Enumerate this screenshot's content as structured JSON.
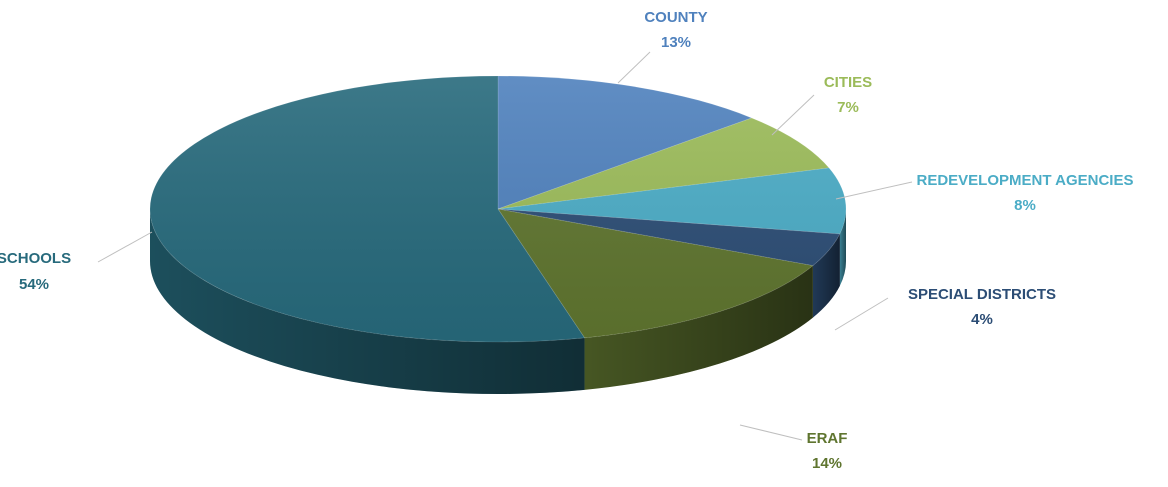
{
  "chart_data": {
    "type": "pie",
    "title": "",
    "three_d": true,
    "start_angle_degrees_clockwise_from_top": 0,
    "slices": [
      {
        "label": "COUNTY",
        "pct_label": "13%",
        "value": 13,
        "color": "#4F81BD",
        "label_color": "#4F81BD"
      },
      {
        "label": "CITIES",
        "pct_label": "7%",
        "value": 7,
        "color": "#9BBB59",
        "label_color": "#9BBB59"
      },
      {
        "label": "REDEVELOPMENT AGENCIES",
        "pct_label": "8%",
        "value": 8,
        "color": "#4BACC6",
        "label_color": "#4BACC6"
      },
      {
        "label": "SPECIAL DISTRICTS",
        "pct_label": "4%",
        "value": 4,
        "color": "#2C4D75",
        "label_color": "#2C4D75"
      },
      {
        "label": "ERAF",
        "pct_label": "14%",
        "value": 14,
        "color": "#5F752F",
        "label_color": "#5F752F"
      },
      {
        "label": "SCHOOLS",
        "pct_label": "54%",
        "value": 54,
        "color": "#276A7C",
        "label_color": "#276A7C"
      }
    ],
    "leader_line_color": "#BFBFBF",
    "legend": "none"
  }
}
